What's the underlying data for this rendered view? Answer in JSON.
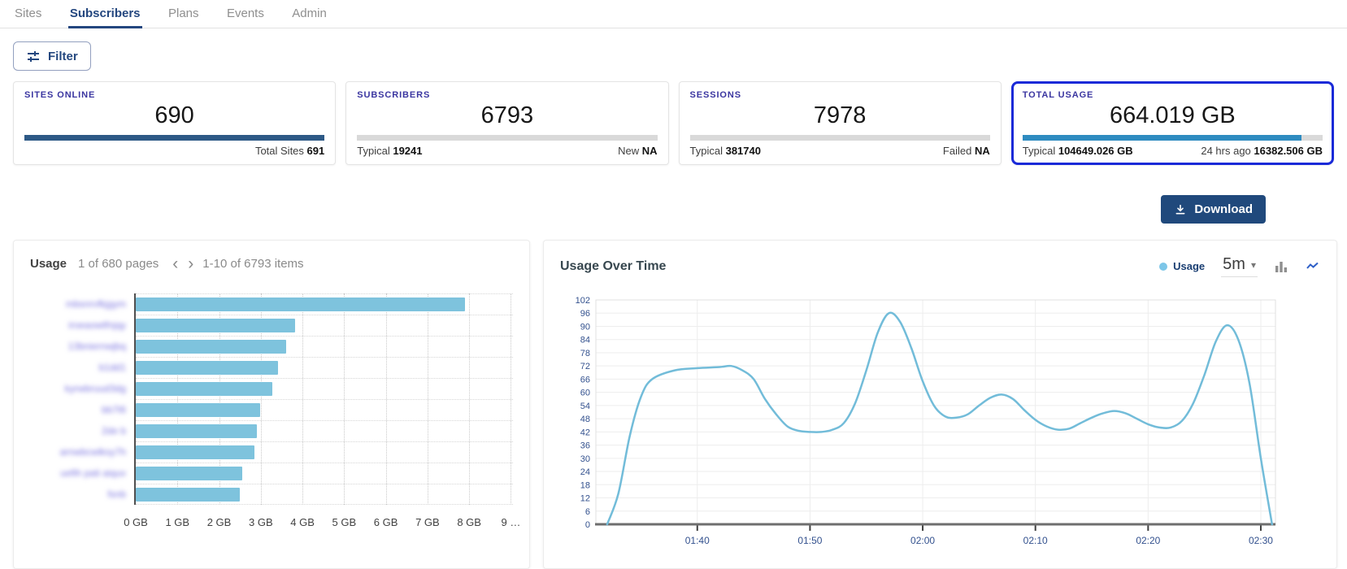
{
  "nav": {
    "tabs": [
      {
        "label": "Sites",
        "active": false
      },
      {
        "label": "Subscribers",
        "active": true
      },
      {
        "label": "Plans",
        "active": false
      },
      {
        "label": "Events",
        "active": false
      },
      {
        "label": "Admin",
        "active": false
      }
    ]
  },
  "filter": {
    "label": "Filter"
  },
  "icons": {
    "prev": "‹",
    "next": "›",
    "caret": "▾"
  },
  "colors": {
    "nav_active": "#24477f",
    "card_label_indigo": "#3a35a0",
    "selected_card_border": "#1a2ad8",
    "progress_dark_blue": "#2d5986",
    "progress_medium_blue": "#2e8bc0",
    "progress_track": "#d9d9d9",
    "download_button": "#20497c",
    "bar_fill": "#7ec3dd",
    "line_stroke": "#72bcd9",
    "legend_dot": "#7dc6e8"
  },
  "stats": [
    {
      "label": "SITES ONLINE",
      "value": "690",
      "progress_pct": 99.9,
      "bar_color": "#2d5986",
      "selected": false,
      "footer_left_label": "",
      "footer_left_value": "",
      "footer_right_label": "Total Sites",
      "footer_right_value": "691"
    },
    {
      "label": "SUBSCRIBERS",
      "value": "6793",
      "progress_pct": 0,
      "bar_color": null,
      "selected": false,
      "footer_left_label": "Typical",
      "footer_left_value": "19241",
      "footer_right_label": "New",
      "footer_right_value": "NA"
    },
    {
      "label": "SESSIONS",
      "value": "7978",
      "progress_pct": 0,
      "bar_color": null,
      "selected": false,
      "footer_left_label": "Typical",
      "footer_left_value": "381740",
      "footer_right_label": "Failed",
      "footer_right_value": "NA"
    },
    {
      "label": "TOTAL USAGE",
      "value": "664.019 GB",
      "progress_pct": 93,
      "bar_color": "#2e8bc0",
      "selected": true,
      "footer_left_label": "Typical",
      "footer_left_value": "104649.026 GB",
      "footer_right_label": "24 hrs ago",
      "footer_right_value": "16382.506 GB"
    }
  ],
  "download": {
    "label": "Download"
  },
  "usage_panel": {
    "title": "Usage",
    "pagination": {
      "pages_text": "1 of 680 pages",
      "items_text": "1-10 of 6793 items"
    }
  },
  "timeline_panel": {
    "title": "Usage Over Time",
    "legend": "Usage",
    "interval": "5m"
  },
  "chart_data": [
    {
      "type": "bar",
      "orientation": "horizontal",
      "title": "Usage",
      "categories_blurred": true,
      "categories": [
        "mbsnrvfkjgym",
        "iroeaowtfnjqy",
        "13bniernwjbq",
        "b1dd1",
        "kyrwbruud3dg",
        "bb7t6",
        "2de b",
        "arnwbcwlksy7h",
        "uefih pati aiquv",
        "fsnb"
      ],
      "values": [
        7.9,
        3.82,
        3.6,
        3.42,
        3.27,
        2.98,
        2.9,
        2.84,
        2.56,
        2.49
      ],
      "unit": "GB",
      "x_ticks": [
        "0 GB",
        "1 GB",
        "2 GB",
        "3 GB",
        "4 GB",
        "5 GB",
        "6 GB",
        "7 GB",
        "8 GB",
        "9 …"
      ],
      "x_tick_values": [
        0,
        1,
        2,
        3,
        4,
        5,
        6,
        7,
        8,
        9
      ],
      "xlim": [
        0,
        9.05
      ],
      "bar_color": "#7ec3dd",
      "grid": "dotted"
    },
    {
      "type": "line",
      "title": "Usage Over Time",
      "legend": [
        "Usage"
      ],
      "legend_position": "top-right",
      "interval": "5m",
      "ylim": [
        0,
        102
      ],
      "y_tick_step": 6,
      "x_ticks": [
        "01:40",
        "01:50",
        "02:00",
        "02:10",
        "02:20",
        "02:30"
      ],
      "x_tick_minutes": [
        100,
        110,
        120,
        130,
        140,
        150
      ],
      "x_domain_minutes": [
        91,
        151.3
      ],
      "grid": true,
      "line_color": "#72bcd9",
      "series": [
        {
          "name": "Usage",
          "points": [
            [
              "01:32",
              0
            ],
            [
              "01:33",
              14
            ],
            [
              "01:34",
              40
            ],
            [
              "01:35",
              58
            ],
            [
              "01:36",
              66
            ],
            [
              "01:38",
              70
            ],
            [
              "01:40",
              71
            ],
            [
              "01:42",
              71.5
            ],
            [
              "01:43",
              72
            ],
            [
              "01:44",
              70
            ],
            [
              "01:45",
              66
            ],
            [
              "01:46",
              57
            ],
            [
              "01:47",
              50
            ],
            [
              "01:48",
              44.5
            ],
            [
              "01:49",
              42.5
            ],
            [
              "01:50",
              42
            ],
            [
              "01:51",
              42
            ],
            [
              "01:52",
              43
            ],
            [
              "01:53",
              46
            ],
            [
              "01:54",
              55
            ],
            [
              "01:55",
              70
            ],
            [
              "01:56",
              87
            ],
            [
              "01:57",
              96
            ],
            [
              "01:58",
              92
            ],
            [
              "01:59",
              80
            ],
            [
              "02:00",
              65
            ],
            [
              "02:01",
              54
            ],
            [
              "02:02",
              49
            ],
            [
              "02:03",
              48.5
            ],
            [
              "02:04",
              50
            ],
            [
              "02:05",
              54
            ],
            [
              "02:06",
              57.5
            ],
            [
              "02:07",
              59
            ],
            [
              "02:08",
              57
            ],
            [
              "02:09",
              52
            ],
            [
              "02:10",
              47.5
            ],
            [
              "02:11",
              44.5
            ],
            [
              "02:12",
              43
            ],
            [
              "02:13",
              43.5
            ],
            [
              "02:14",
              46
            ],
            [
              "02:15",
              48.5
            ],
            [
              "02:16",
              50.5
            ],
            [
              "02:17",
              51.5
            ],
            [
              "02:18",
              50.5
            ],
            [
              "02:19",
              48
            ],
            [
              "02:20",
              45.5
            ],
            [
              "02:21",
              44
            ],
            [
              "02:22",
              44
            ],
            [
              "02:23",
              47
            ],
            [
              "02:24",
              55
            ],
            [
              "02:25",
              68
            ],
            [
              "02:26",
              83
            ],
            [
              "02:27",
              90.5
            ],
            [
              "02:28",
              84
            ],
            [
              "02:29",
              64
            ],
            [
              "02:30",
              30
            ],
            [
              "02:31",
              0
            ]
          ]
        }
      ]
    }
  ]
}
